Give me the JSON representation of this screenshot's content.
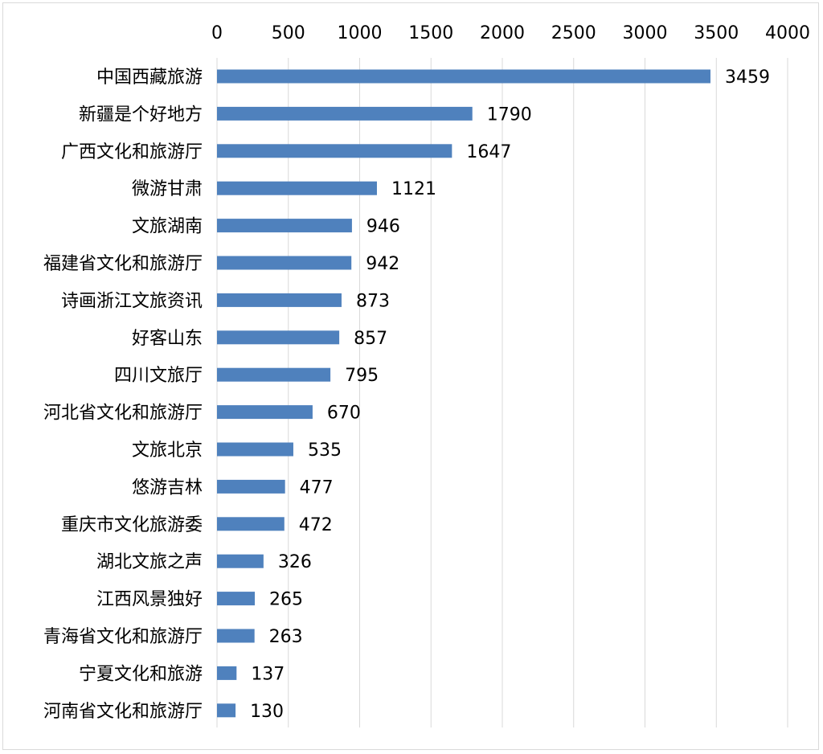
{
  "chart_data": {
    "type": "bar",
    "orientation": "horizontal",
    "title": "",
    "xlabel": "",
    "ylabel": "",
    "xlim": [
      0,
      4000
    ],
    "x_ticks": [
      0,
      500,
      1000,
      1500,
      2000,
      2500,
      3000,
      3500,
      4000
    ],
    "x_tick_labels": [
      "0",
      "500",
      "1000",
      "1500",
      "2000",
      "2500",
      "3000",
      "3500",
      "4000"
    ],
    "axis_position": "top",
    "grid": true,
    "legend": "none",
    "bar_color": "#4f81bd",
    "grid_color": "#d9d9d9",
    "categories": [
      "中国西藏旅游",
      "新疆是个好地方",
      "广西文化和旅游厅",
      "微游甘肃",
      "文旅湖南",
      "福建省文化和旅游厅",
      "诗画浙江文旅资讯",
      "好客山东",
      "四川文旅厅",
      "河北省文化和旅游厅",
      "文旅北京",
      "悠游吉林",
      "重庆市文化旅游委",
      "湖北文旅之声",
      "江西风景独好",
      "青海省文化和旅游厅",
      "宁夏文化和旅游",
      "河南省文化和旅游厅"
    ],
    "values": [
      3459,
      1790,
      1647,
      1121,
      946,
      942,
      873,
      857,
      795,
      670,
      535,
      477,
      472,
      326,
      265,
      263,
      137,
      130
    ],
    "data_labels": [
      "3459",
      "1790",
      "1647",
      "1121",
      "946",
      "942",
      "873",
      "857",
      "795",
      "670",
      "535",
      "477",
      "472",
      "326",
      "265",
      "263",
      "137",
      "130"
    ]
  }
}
